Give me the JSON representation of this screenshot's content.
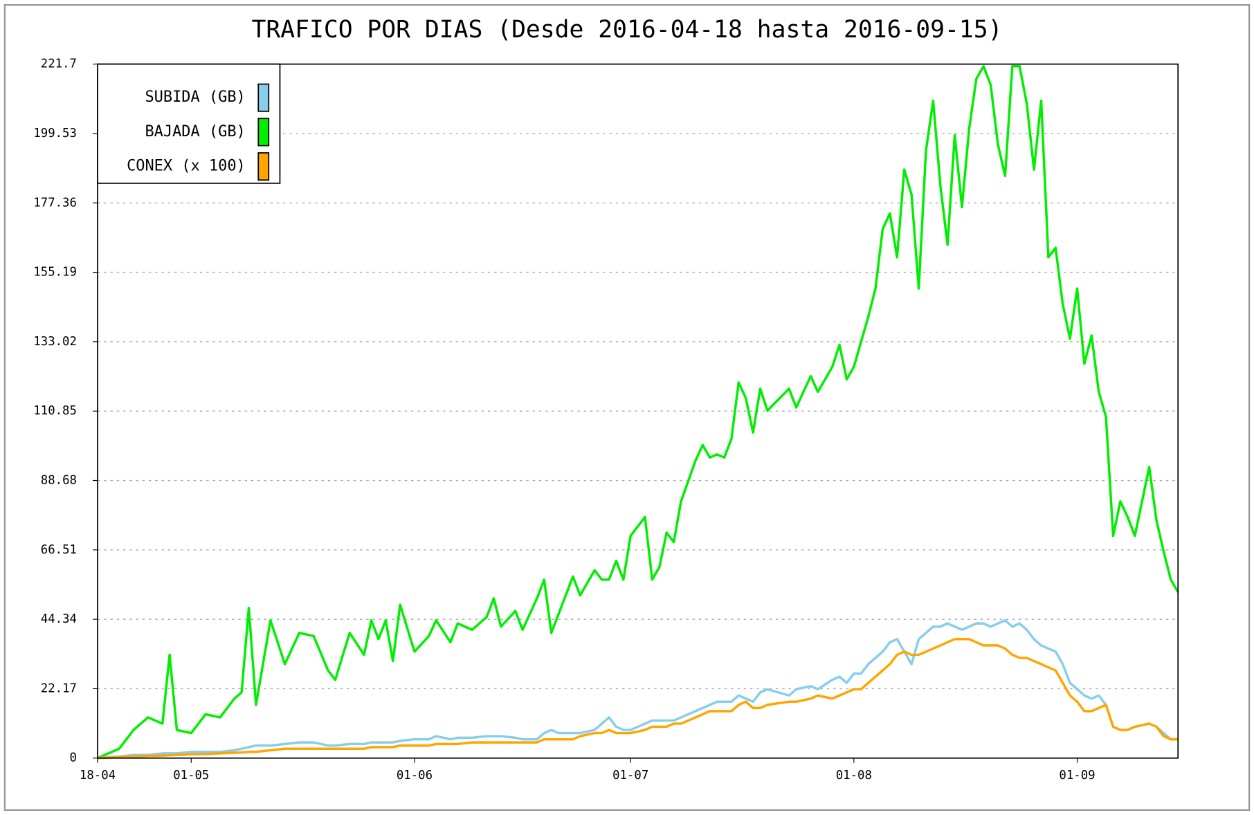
{
  "chart_data": {
    "type": "line",
    "title": "TRAFICO POR DIAS (Desde 2016-04-18 hasta 2016-09-15)",
    "x": [
      "2016-04-18",
      "2016-04-21",
      "2016-04-23",
      "2016-04-25",
      "2016-04-27",
      "2016-04-28",
      "2016-04-29",
      "2016-05-01",
      "2016-05-03",
      "2016-05-05",
      "2016-05-07",
      "2016-05-08",
      "2016-05-09",
      "2016-05-10",
      "2016-05-12",
      "2016-05-14",
      "2016-05-16",
      "2016-05-18",
      "2016-05-20",
      "2016-05-21",
      "2016-05-23",
      "2016-05-25",
      "2016-05-26",
      "2016-05-27",
      "2016-05-28",
      "2016-05-29",
      "2016-05-30",
      "2016-06-01",
      "2016-06-03",
      "2016-06-04",
      "2016-06-06",
      "2016-06-07",
      "2016-06-09",
      "2016-06-11",
      "2016-06-12",
      "2016-06-13",
      "2016-06-15",
      "2016-06-16",
      "2016-06-18",
      "2016-06-19",
      "2016-06-20",
      "2016-06-21",
      "2016-06-23",
      "2016-06-24",
      "2016-06-26",
      "2016-06-27",
      "2016-06-28",
      "2016-06-29",
      "2016-06-30",
      "2016-07-01",
      "2016-07-03",
      "2016-07-04",
      "2016-07-05",
      "2016-07-06",
      "2016-07-07",
      "2016-07-08",
      "2016-07-10",
      "2016-07-11",
      "2016-07-12",
      "2016-07-13",
      "2016-07-14",
      "2016-07-15",
      "2016-07-16",
      "2016-07-17",
      "2016-07-18",
      "2016-07-19",
      "2016-07-20",
      "2016-07-23",
      "2016-07-24",
      "2016-07-26",
      "2016-07-27",
      "2016-07-29",
      "2016-07-30",
      "2016-07-31",
      "2016-08-01",
      "2016-08-02",
      "2016-08-03",
      "2016-08-04",
      "2016-08-05",
      "2016-08-06",
      "2016-08-07",
      "2016-08-08",
      "2016-08-09",
      "2016-08-10",
      "2016-08-11",
      "2016-08-12",
      "2016-08-13",
      "2016-08-14",
      "2016-08-15",
      "2016-08-16",
      "2016-08-17",
      "2016-08-18",
      "2016-08-19",
      "2016-08-20",
      "2016-08-21",
      "2016-08-22",
      "2016-08-23",
      "2016-08-24",
      "2016-08-25",
      "2016-08-26",
      "2016-08-27",
      "2016-08-28",
      "2016-08-29",
      "2016-08-30",
      "2016-08-31",
      "2016-09-01",
      "2016-09-02",
      "2016-09-03",
      "2016-09-04",
      "2016-09-05",
      "2016-09-06",
      "2016-09-07",
      "2016-09-08",
      "2016-09-09",
      "2016-09-11",
      "2016-09-12",
      "2016-09-13",
      "2016-09-14",
      "2016-09-15"
    ],
    "series": [
      {
        "name": "SUBIDA (GB)",
        "color": "#87ceeb",
        "values": [
          0,
          0.5,
          1,
          1,
          1.5,
          1.5,
          1.5,
          2,
          2,
          2,
          2.5,
          3,
          3.5,
          4,
          4,
          4.5,
          5,
          5,
          4,
          4,
          4.5,
          4.5,
          5,
          5,
          5,
          5,
          5.5,
          6,
          6,
          7,
          6,
          6.5,
          6.5,
          7,
          7,
          7,
          6.5,
          6,
          6,
          8,
          9,
          8,
          8,
          8,
          9,
          11,
          13,
          10,
          9,
          9,
          11,
          12,
          12,
          12,
          12,
          13,
          15,
          16,
          17,
          18,
          18,
          18,
          20,
          19,
          18,
          21,
          22,
          20,
          22,
          23,
          22,
          25,
          26,
          24,
          27,
          27,
          30,
          32,
          34,
          37,
          38,
          34,
          30,
          38,
          40,
          42,
          42,
          43,
          42,
          41,
          42,
          43,
          43,
          42,
          43,
          44,
          42,
          43,
          41,
          38,
          36,
          35,
          34,
          30,
          24,
          22,
          20,
          19,
          20,
          17,
          10,
          9,
          9,
          10,
          11,
          10,
          8,
          6,
          6
        ]
      },
      {
        "name": "BAJADA (GB)",
        "color": "#00ee00",
        "values": [
          0,
          3,
          9,
          13,
          11,
          33,
          9,
          8,
          14,
          13,
          19,
          21,
          48,
          17,
          44,
          30,
          40,
          39,
          28,
          25,
          40,
          33,
          44,
          38,
          44,
          31,
          49,
          34,
          39,
          44,
          37,
          43,
          41,
          45,
          51,
          42,
          47,
          41,
          51,
          57,
          40,
          46,
          58,
          52,
          60,
          57,
          57,
          63,
          57,
          71,
          77,
          57,
          61,
          72,
          69,
          82,
          95,
          100,
          96,
          97,
          96,
          102,
          120,
          115,
          104,
          118,
          111,
          118,
          112,
          122,
          117,
          125,
          132,
          121,
          125,
          133,
          141,
          150,
          169,
          174,
          160,
          188,
          180,
          150,
          194,
          210,
          183,
          164,
          199,
          176,
          201,
          217,
          221,
          215,
          196,
          186,
          221,
          221,
          209,
          188,
          210,
          160,
          163,
          145,
          134,
          150,
          126,
          135,
          117,
          109,
          71,
          82,
          77,
          71,
          93,
          76,
          66,
          57,
          53
        ]
      },
      {
        "name": "CONEX (x 100)",
        "color": "#ffa500",
        "values": [
          0,
          0.3,
          0.5,
          0.7,
          0.8,
          0.9,
          1,
          1.2,
          1.3,
          1.5,
          1.7,
          1.8,
          2,
          2,
          2.5,
          3,
          3,
          3,
          3,
          3,
          3,
          3,
          3.5,
          3.5,
          3.5,
          3.5,
          4,
          4,
          4,
          4.5,
          4.5,
          4.5,
          5,
          5,
          5,
          5,
          5,
          5,
          5,
          6,
          6,
          6,
          6,
          7,
          8,
          8,
          9,
          8,
          8,
          8,
          9,
          10,
          10,
          10,
          11,
          11,
          13,
          14,
          15,
          15,
          15,
          15,
          17,
          18,
          16,
          16,
          17,
          18,
          18,
          19,
          20,
          19,
          20,
          21,
          22,
          22,
          24,
          26,
          28,
          30,
          33,
          34,
          33,
          33,
          34,
          35,
          36,
          37,
          38,
          38,
          38,
          37,
          36,
          36,
          36,
          35,
          33,
          32,
          32,
          31,
          30,
          29,
          28,
          24,
          20,
          18,
          15,
          15,
          16,
          17,
          10,
          9,
          9,
          10,
          11,
          10,
          7,
          6,
          6
        ]
      }
    ],
    "draw_order": [
      "BAJADA (GB)",
      "SUBIDA (GB)",
      "CONEX (x 100)"
    ],
    "xlim": [
      "2016-04-18",
      "2016-09-15"
    ],
    "xticks": [
      {
        "value": "2016-04-18",
        "label": "18-04"
      },
      {
        "value": "2016-05-01",
        "label": "01-05"
      },
      {
        "value": "2016-06-01",
        "label": "01-06"
      },
      {
        "value": "2016-07-01",
        "label": "01-07"
      },
      {
        "value": "2016-08-01",
        "label": "01-08"
      },
      {
        "value": "2016-09-01",
        "label": "01-09"
      }
    ],
    "ylim": [
      0,
      221.7
    ],
    "yticks": [
      0,
      22.17,
      44.34,
      66.51,
      88.68,
      110.85,
      133.02,
      155.19,
      177.36,
      199.53,
      221.7
    ],
    "grid": true,
    "legend": "upper left"
  }
}
